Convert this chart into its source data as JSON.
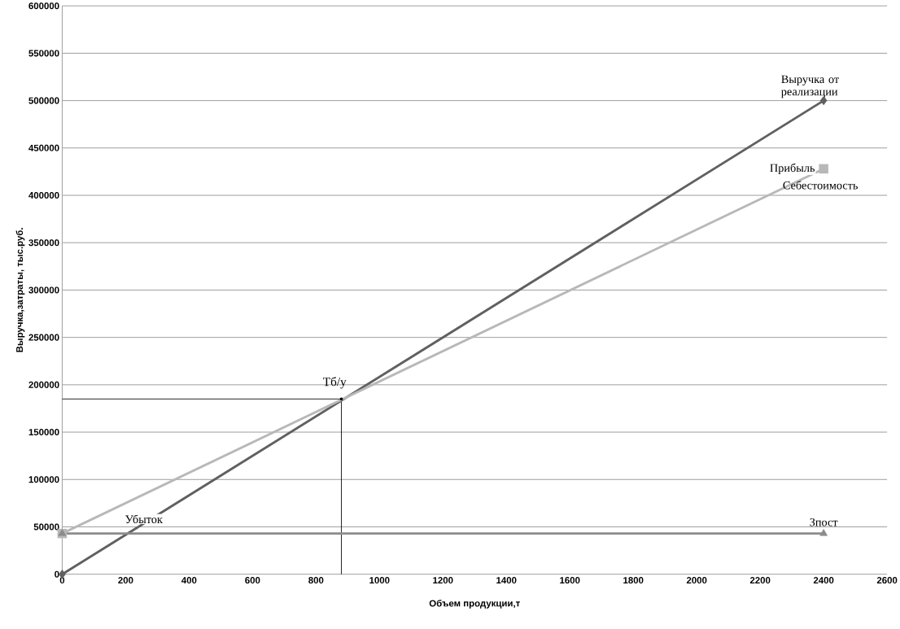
{
  "chart_data": {
    "type": "line",
    "xlabel": "Объем продукции,т",
    "ylabel": "Выручка,затраты, тыс.руб.",
    "x": [
      0,
      2400
    ],
    "series": [
      {
        "name": "Выручка от реализации",
        "color": "#606060",
        "values": [
          0,
          500000
        ],
        "marker": "diamond"
      },
      {
        "name": "Себестоимость",
        "color": "#b8b8b8",
        "values": [
          43000,
          428000
        ],
        "marker": "square"
      },
      {
        "name": "Зпост",
        "color": "#8c8c8c",
        "values": [
          43000,
          43000
        ],
        "marker": "triangle"
      }
    ],
    "xlim": [
      0,
      2600
    ],
    "xticks": [
      0,
      200,
      400,
      600,
      800,
      1000,
      1200,
      1400,
      1600,
      1800,
      2000,
      2200,
      2400,
      2600
    ],
    "ylim": [
      0,
      600000
    ],
    "yticks": [
      0,
      50000,
      100000,
      150000,
      200000,
      250000,
      300000,
      350000,
      400000,
      450000,
      500000,
      550000,
      600000
    ],
    "grid": "y",
    "ref_lines": [
      {
        "axis": "y",
        "value": 185000,
        "color": "#000000"
      },
      {
        "axis": "x",
        "value": 880,
        "color": "#000000"
      }
    ],
    "annotations": [
      {
        "text": "Тб/у",
        "x": 880,
        "y": 185000
      },
      "Прибыль",
      "Убыток"
    ]
  }
}
